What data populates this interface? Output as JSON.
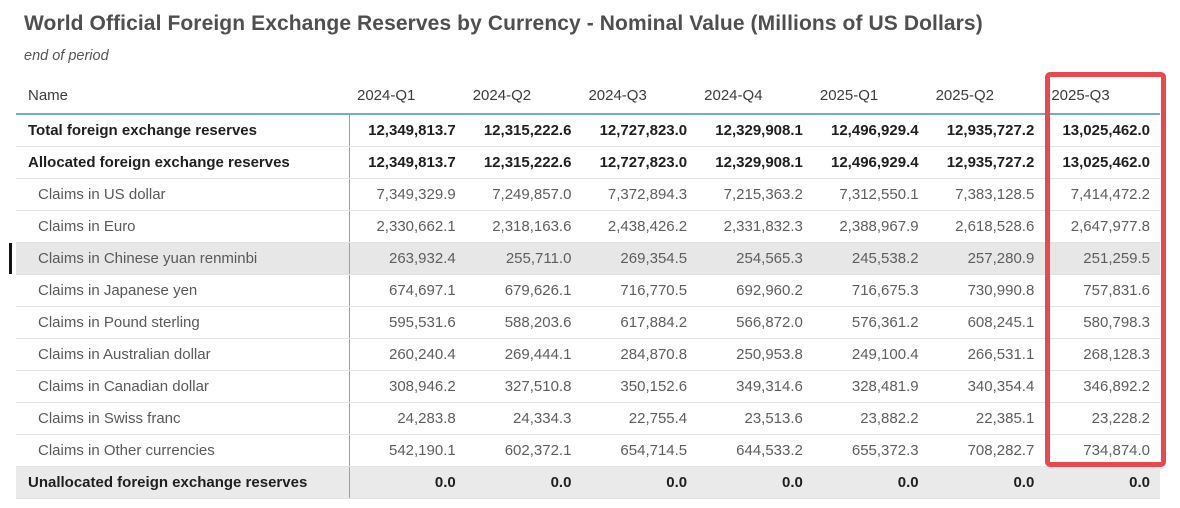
{
  "title": "World Official Foreign Exchange Reserves by Currency - Nominal Value (Millions of US Dollars)",
  "subtitle": "end of period",
  "colors": {
    "header_rule_blue": "#6fadd2",
    "highlight_red": "#e9484f",
    "selected_row_bg": "#e7e7e7",
    "total_row_bg": "#eaeaea",
    "selection_bar_black": "#141414"
  },
  "annotation": {
    "highlighted_column": "2025-Q3"
  },
  "table": {
    "name_header": "Name",
    "columns": [
      "2024-Q1",
      "2024-Q2",
      "2024-Q3",
      "2024-Q4",
      "2025-Q1",
      "2025-Q2",
      "2025-Q3"
    ],
    "rows": [
      {
        "name": "Total foreign exchange reserves",
        "style": "bold",
        "selected": false,
        "values": [
          "12,349,813.7",
          "12,315,222.6",
          "12,727,823.0",
          "12,329,908.1",
          "12,496,929.4",
          "12,935,727.2",
          "13,025,462.0"
        ]
      },
      {
        "name": "Allocated foreign exchange reserves",
        "style": "bold",
        "selected": false,
        "values": [
          "12,349,813.7",
          "12,315,222.6",
          "12,727,823.0",
          "12,329,908.1",
          "12,496,929.4",
          "12,935,727.2",
          "13,025,462.0"
        ]
      },
      {
        "name": "Claims in US dollar",
        "style": "claim",
        "selected": false,
        "values": [
          "7,349,329.9",
          "7,249,857.0",
          "7,372,894.3",
          "7,215,363.2",
          "7,312,550.1",
          "7,383,128.5",
          "7,414,472.2"
        ]
      },
      {
        "name": "Claims in Euro",
        "style": "claim",
        "selected": false,
        "values": [
          "2,330,662.1",
          "2,318,163.6",
          "2,438,426.2",
          "2,331,832.3",
          "2,388,967.9",
          "2,618,528.6",
          "2,647,977.8"
        ]
      },
      {
        "name": "Claims in Chinese yuan renminbi",
        "style": "claim",
        "selected": true,
        "values": [
          "263,932.4",
          "255,711.0",
          "269,354.5",
          "254,565.3",
          "245,538.2",
          "257,280.9",
          "251,259.5"
        ]
      },
      {
        "name": "Claims in Japanese yen",
        "style": "claim",
        "selected": false,
        "values": [
          "674,697.1",
          "679,626.1",
          "716,770.5",
          "692,960.2",
          "716,675.3",
          "730,990.8",
          "757,831.6"
        ]
      },
      {
        "name": "Claims in Pound sterling",
        "style": "claim",
        "selected": false,
        "values": [
          "595,531.6",
          "588,203.6",
          "617,884.2",
          "566,872.0",
          "576,361.2",
          "608,245.1",
          "580,798.3"
        ]
      },
      {
        "name": "Claims in Australian dollar",
        "style": "claim",
        "selected": false,
        "values": [
          "260,240.4",
          "269,444.1",
          "284,870.8",
          "250,953.8",
          "249,100.4",
          "266,531.1",
          "268,128.3"
        ]
      },
      {
        "name": "Claims in Canadian dollar",
        "style": "claim",
        "selected": false,
        "values": [
          "308,946.2",
          "327,510.8",
          "350,152.6",
          "349,314.6",
          "328,481.9",
          "340,354.4",
          "346,892.2"
        ]
      },
      {
        "name": "Claims in Swiss franc",
        "style": "claim",
        "selected": false,
        "values": [
          "24,283.8",
          "24,334.3",
          "22,755.4",
          "23,513.6",
          "23,882.2",
          "22,385.1",
          "23,228.2"
        ]
      },
      {
        "name": "Claims in Other currencies",
        "style": "claim",
        "selected": false,
        "values": [
          "542,190.1",
          "602,372.1",
          "654,714.5",
          "644,533.2",
          "655,372.3",
          "708,282.7",
          "734,874.0"
        ]
      },
      {
        "name": "Unallocated foreign exchange reserves",
        "style": "total",
        "selected": false,
        "values": [
          "0.0",
          "0.0",
          "0.0",
          "0.0",
          "0.0",
          "0.0",
          "0.0"
        ]
      }
    ]
  }
}
